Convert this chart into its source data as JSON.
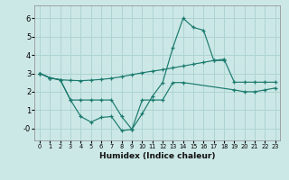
{
  "xlabel": "Humidex (Indice chaleur)",
  "bg_color": "#cce8e6",
  "grid_color": "#aed4d2",
  "line_color": "#1a7a6e",
  "xlim": [
    -0.5,
    23.5
  ],
  "ylim": [
    -0.65,
    6.7
  ],
  "xticks": [
    0,
    1,
    2,
    3,
    4,
    5,
    6,
    7,
    8,
    9,
    10,
    11,
    12,
    13,
    14,
    15,
    16,
    17,
    18,
    19,
    20,
    21,
    22,
    23
  ],
  "yticks": [
    0,
    1,
    2,
    3,
    4,
    5,
    6
  ],
  "ytick_labels": [
    "-0",
    "1",
    "2",
    "3",
    "4",
    "5",
    "6"
  ],
  "line1_x": [
    0,
    1,
    2,
    3,
    4,
    5,
    6,
    7,
    8,
    9,
    10,
    11,
    12,
    13,
    14,
    15,
    16,
    17,
    18,
    19,
    20,
    21,
    22,
    23
  ],
  "line1_y": [
    3.0,
    2.75,
    2.65,
    2.62,
    2.6,
    2.63,
    2.67,
    2.73,
    2.82,
    2.93,
    3.03,
    3.12,
    3.2,
    3.3,
    3.4,
    3.5,
    3.6,
    3.7,
    3.77,
    2.52,
    2.52,
    2.52,
    2.52,
    2.52
  ],
  "line2_x": [
    0,
    1,
    2,
    3,
    4,
    5,
    6,
    7,
    8,
    9,
    10,
    11,
    12,
    13,
    14,
    15,
    16,
    17,
    18
  ],
  "line2_y": [
    3.0,
    2.75,
    2.65,
    1.55,
    0.65,
    0.35,
    0.6,
    0.65,
    -0.12,
    -0.05,
    0.8,
    1.75,
    2.5,
    4.4,
    6.0,
    5.5,
    5.35,
    3.7,
    3.7
  ],
  "line3_x": [
    0,
    1,
    2,
    3,
    4,
    5,
    6,
    7,
    8,
    9,
    10,
    11,
    12,
    13,
    14,
    19,
    20,
    21,
    22,
    23
  ],
  "line3_y": [
    3.0,
    2.75,
    2.65,
    1.55,
    1.55,
    1.55,
    1.55,
    1.55,
    0.65,
    -0.05,
    1.55,
    1.55,
    1.55,
    2.5,
    2.5,
    2.1,
    2.0,
    2.0,
    2.1,
    2.2
  ]
}
